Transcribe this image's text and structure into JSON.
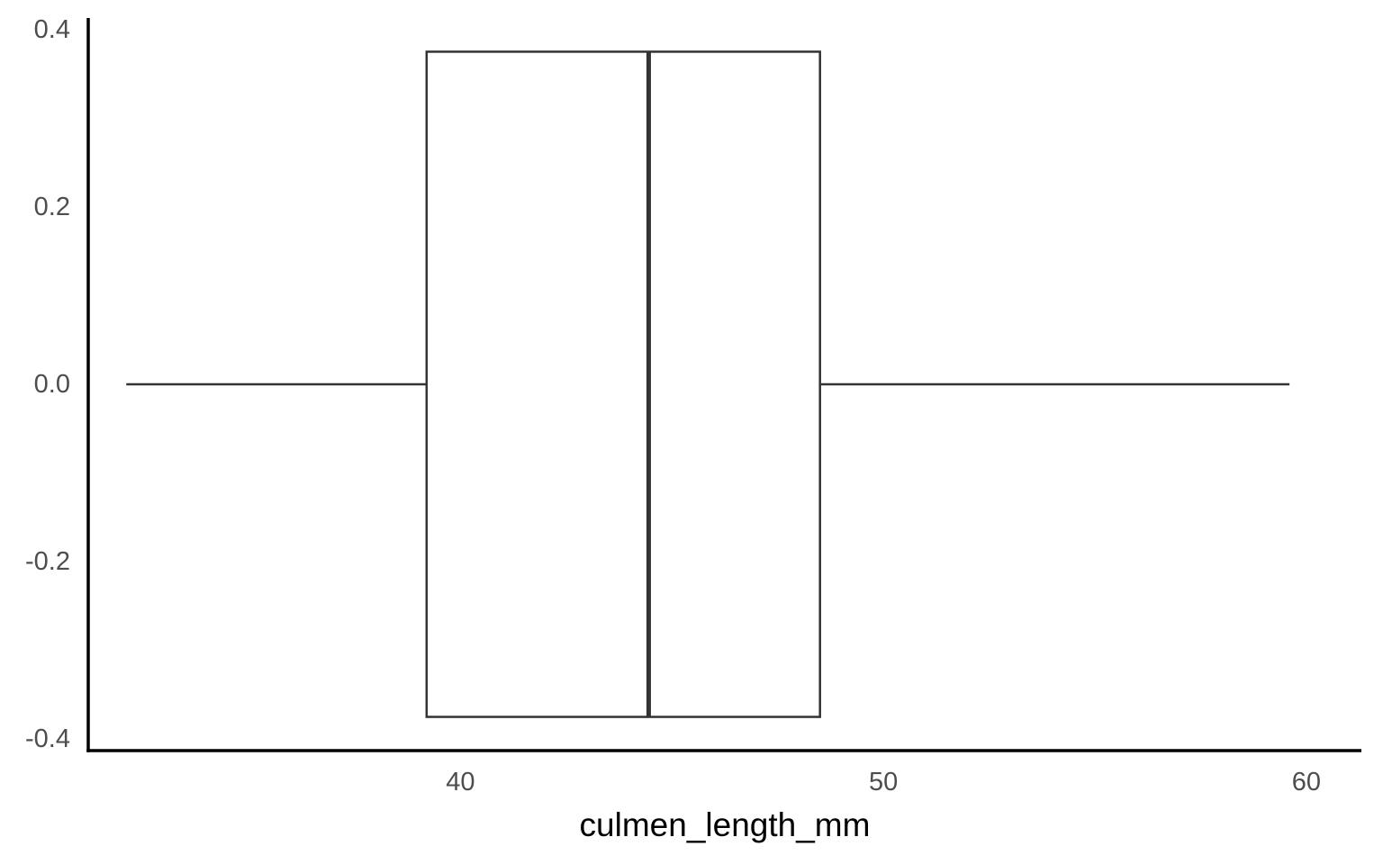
{
  "chart_data": {
    "type": "boxplot",
    "title": "",
    "xlabel": "culmen_length_mm",
    "ylabel": "",
    "xlim": [
      31.2,
      61.3
    ],
    "ylim": [
      -0.413,
      0.413
    ],
    "x_ticks": [
      40,
      50,
      60
    ],
    "x_tick_labels": [
      "40",
      "50",
      "60"
    ],
    "y_ticks": [
      0.4,
      0.2,
      0.0,
      -0.2,
      -0.4
    ],
    "y_tick_labels": [
      "0.4",
      "0.2",
      "0.0",
      "-0.2",
      "-0.4"
    ],
    "grid": false,
    "box": {
      "variable": "culmen_length_mm",
      "whisker_low": 32.1,
      "q1": 39.2,
      "median": 44.45,
      "q3": 48.5,
      "whisker_high": 59.6,
      "y_center": 0.0,
      "half_width": 0.375
    },
    "colors": {
      "box_fill": "#ffffff",
      "box_stroke": "#333333",
      "axis": "#000000",
      "tick_label": "#4d4d4d"
    }
  }
}
